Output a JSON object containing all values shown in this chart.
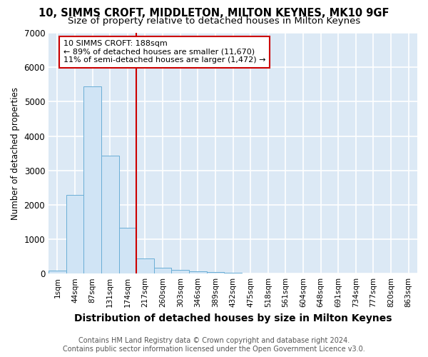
{
  "title1": "10, SIMMS CROFT, MIDDLETON, MILTON KEYNES, MK10 9GF",
  "title2": "Size of property relative to detached houses in Milton Keynes",
  "xlabel": "Distribution of detached houses by size in Milton Keynes",
  "ylabel": "Number of detached properties",
  "bin_labels": [
    "1sqm",
    "44sqm",
    "87sqm",
    "131sqm",
    "174sqm",
    "217sqm",
    "260sqm",
    "303sqm",
    "346sqm",
    "389sqm",
    "432sqm",
    "475sqm",
    "518sqm",
    "561sqm",
    "604sqm",
    "648sqm",
    "691sqm",
    "734sqm",
    "777sqm",
    "820sqm",
    "863sqm"
  ],
  "bar_heights": [
    80,
    2280,
    5450,
    3420,
    1330,
    450,
    170,
    100,
    70,
    40,
    30,
    5,
    3,
    2,
    1,
    1,
    0,
    0,
    0,
    0,
    0
  ],
  "bar_color": "#d0e4f5",
  "bar_edge_color": "#6aaed6",
  "ylim": [
    0,
    7000
  ],
  "red_line_x": 5.0,
  "red_line_color": "#cc0000",
  "annotation_text": "10 SIMMS CROFT: 188sqm\n← 89% of detached houses are smaller (11,670)\n11% of semi-detached houses are larger (1,472) →",
  "annotation_box_color": "#ffffff",
  "annotation_edge_color": "#cc0000",
  "footnote1": "Contains HM Land Registry data © Crown copyright and database right 2024.",
  "footnote2": "Contains public sector information licensed under the Open Government Licence v3.0.",
  "bg_color": "#dce9f5",
  "fig_bg_color": "#ffffff",
  "grid_color": "#ffffff",
  "title1_fontsize": 10.5,
  "title2_fontsize": 9.5,
  "xlabel_fontsize": 10,
  "ylabel_fontsize": 8.5,
  "tick_fontsize": 7.5,
  "annot_fontsize": 8,
  "footnote_fontsize": 7
}
